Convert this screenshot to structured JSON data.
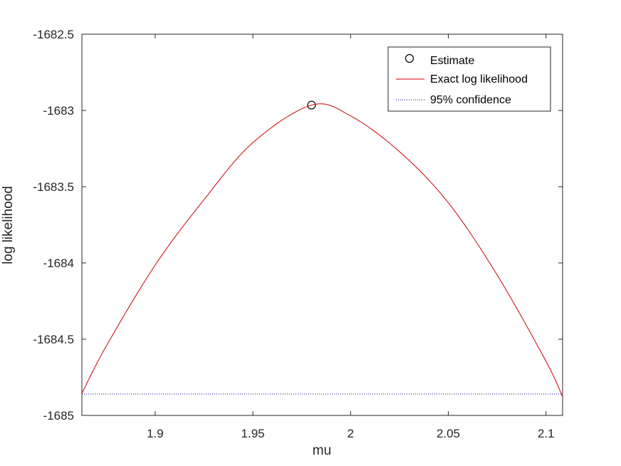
{
  "chart_data": {
    "type": "line",
    "xlabel": "mu",
    "ylabel": "log likelihood",
    "xlim": [
      1.8625,
      2.1085
    ],
    "ylim": [
      -1685,
      -1682.5
    ],
    "xticks": [
      1.9,
      1.95,
      2,
      2.05,
      2.1
    ],
    "xtick_labels": [
      "1.9",
      "1.95",
      "2",
      "2.05",
      "2.1"
    ],
    "yticks": [
      -1685,
      -1684.5,
      -1684,
      -1683.5,
      -1683,
      -1682.5
    ],
    "ytick_labels": [
      "-1685",
      "-1684.5",
      "-1684",
      "-1683.5",
      "-1683",
      "-1682.5"
    ],
    "grid": false,
    "legend_position": "top-right",
    "series": [
      {
        "name": "Estimate",
        "kind": "marker",
        "marker": "circle",
        "color": "#000000",
        "x": [
          1.98
        ],
        "y": [
          -1682.965
        ]
      },
      {
        "name": "Exact log likelihood",
        "kind": "curve",
        "color": "#cc0000",
        "x": [
          1.8625,
          1.875,
          1.9,
          1.925,
          1.95,
          1.98,
          2.0,
          2.025,
          2.05,
          2.075,
          2.1,
          2.1085
        ],
        "y": [
          -1684.855,
          -1684.545,
          -1684.014,
          -1683.585,
          -1683.211,
          -1682.965,
          -1683.036,
          -1683.27,
          -1683.605,
          -1684.079,
          -1684.645,
          -1684.878
        ]
      },
      {
        "name": "95% confidence",
        "kind": "hline",
        "style": "dotted",
        "color": "#000080",
        "y": -1684.86
      }
    ]
  }
}
